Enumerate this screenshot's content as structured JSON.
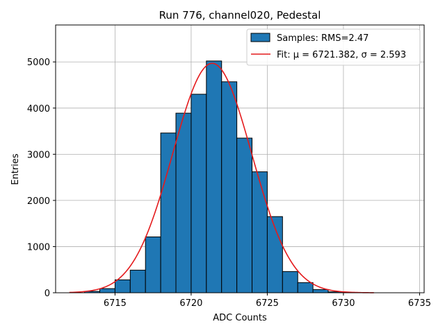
{
  "chart_data": {
    "type": "bar",
    "title": "Run 776, channel020, Pedestal",
    "xlabel": "ADC Counts",
    "ylabel": "Entries",
    "xlim": [
      6711.1,
      6735.3
    ],
    "ylim": [
      0,
      5800
    ],
    "xticks": [
      6715,
      6720,
      6725,
      6730,
      6735
    ],
    "yticks": [
      0,
      1000,
      2000,
      3000,
      4000,
      5000
    ],
    "grid": true,
    "legend_position": "top-right",
    "histogram": {
      "name": "Samples: RMS=2.47",
      "color": "#1f77b4",
      "bin_width": 1,
      "bins": [
        {
          "x0": 6713,
          "value": 30
        },
        {
          "x0": 6714,
          "value": 90
        },
        {
          "x0": 6715,
          "value": 280
        },
        {
          "x0": 6716,
          "value": 490
        },
        {
          "x0": 6717,
          "value": 1210
        },
        {
          "x0": 6718,
          "value": 3460
        },
        {
          "x0": 6719,
          "value": 3890
        },
        {
          "x0": 6720,
          "value": 4300
        },
        {
          "x0": 6721,
          "value": 5020
        },
        {
          "x0": 6722,
          "value": 4570
        },
        {
          "x0": 6723,
          "value": 3350
        },
        {
          "x0": 6724,
          "value": 2620
        },
        {
          "x0": 6725,
          "value": 1650
        },
        {
          "x0": 6726,
          "value": 460
        },
        {
          "x0": 6727,
          "value": 220
        },
        {
          "x0": 6728,
          "value": 70
        },
        {
          "x0": 6729,
          "value": 20
        }
      ]
    },
    "fit": {
      "name": "Fit: μ = 6721.382, σ = 2.593",
      "color": "#e41a1c",
      "mu": 6721.382,
      "sigma": 2.593,
      "amplitude": 4970,
      "x_range": [
        6712,
        6732
      ]
    }
  }
}
